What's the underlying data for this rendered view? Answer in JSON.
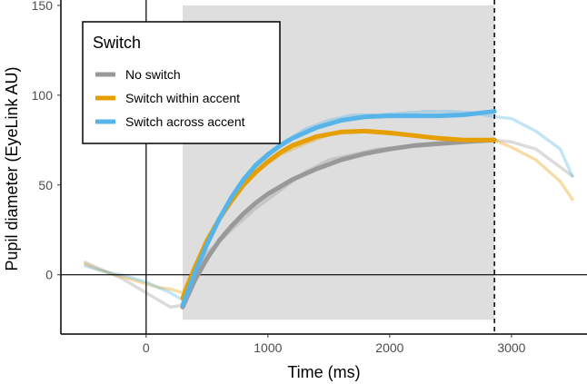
{
  "chart_data": {
    "type": "line",
    "xlabel": "Time (ms)",
    "ylabel": "Pupil diameter (EyeLink AU)",
    "xlim": [
      -700,
      3620
    ],
    "ylim": [
      -33,
      153
    ],
    "x_ticks": [
      0,
      1000,
      2000,
      3000
    ],
    "y_ticks": [
      0,
      50,
      100,
      150
    ],
    "grid": false,
    "shaded_region": {
      "x": [
        300,
        2860
      ],
      "y": [
        -25,
        150
      ],
      "color": "#dedede"
    },
    "reference_lines": {
      "vertical_solid_x": 0,
      "horizontal_solid_y": 0,
      "vertical_dashed_x": 2860
    },
    "legend": {
      "title": "Switch",
      "placement": "top-left"
    },
    "series": [
      {
        "name": "No switch",
        "color": "#999999",
        "fit": {
          "x": [
            300,
            400,
            500,
            600,
            700,
            800,
            900,
            1000,
            1200,
            1400,
            1600,
            1800,
            2000,
            2200,
            2400,
            2600,
            2860
          ],
          "y": [
            -18,
            -3,
            9,
            19,
            27,
            34,
            40,
            45,
            53,
            59,
            64,
            67.5,
            70,
            72,
            73,
            74,
            75
          ]
        },
        "raw": {
          "x": [
            -500,
            -400,
            -300,
            -200,
            -100,
            0,
            100,
            200,
            300,
            400,
            500,
            700,
            900,
            1100,
            1300,
            1500,
            1700,
            1900,
            2100,
            2300,
            2500,
            2700,
            2860,
            3000,
            3200,
            3400,
            3500
          ],
          "y": [
            7,
            4,
            1,
            -2,
            -6,
            -10,
            -14,
            -18,
            -17,
            0,
            12,
            25,
            37,
            47,
            57,
            64,
            67,
            70,
            71,
            72,
            73,
            74,
            75,
            74,
            70,
            60,
            55
          ]
        }
      },
      {
        "name": "Switch within accent",
        "color": "#E69F00",
        "fit": {
          "x": [
            300,
            400,
            500,
            600,
            700,
            800,
            900,
            1000,
            1100,
            1200,
            1400,
            1600,
            1800,
            2000,
            2200,
            2400,
            2600,
            2860
          ],
          "y": [
            -13,
            4,
            19,
            31,
            41,
            50,
            57,
            63,
            68,
            72,
            77,
            79.5,
            80,
            79,
            77.5,
            76,
            75,
            75
          ]
        },
        "raw": {
          "x": [
            -500,
            -400,
            -300,
            -200,
            -100,
            0,
            100,
            200,
            300,
            400,
            500,
            700,
            900,
            1100,
            1300,
            1500,
            1700,
            1900,
            2100,
            2300,
            2500,
            2700,
            2860,
            3000,
            3200,
            3400,
            3500
          ],
          "y": [
            6,
            3,
            1,
            -1,
            -3,
            -5,
            -7,
            -8,
            -10,
            5,
            20,
            42,
            57,
            67,
            73,
            78,
            80,
            79,
            78,
            77,
            76,
            75,
            75,
            71,
            64,
            52,
            42
          ]
        }
      },
      {
        "name": "Switch across accent",
        "color": "#56B4E9",
        "fit": {
          "x": [
            300,
            400,
            500,
            600,
            700,
            800,
            900,
            1000,
            1100,
            1200,
            1400,
            1600,
            1800,
            2000,
            2200,
            2400,
            2600,
            2860
          ],
          "y": [
            -17,
            1,
            17,
            31,
            43,
            53,
            61,
            67,
            72,
            76,
            82,
            86,
            88,
            88.5,
            88.5,
            88.5,
            89,
            91
          ]
        },
        "raw": {
          "x": [
            -500,
            -400,
            -300,
            -200,
            -100,
            0,
            100,
            200,
            300,
            400,
            500,
            700,
            900,
            1100,
            1300,
            1500,
            1700,
            1900,
            2100,
            2300,
            2500,
            2700,
            2860,
            3000,
            3200,
            3400,
            3500
          ],
          "y": [
            5,
            3,
            1,
            0,
            -2,
            -4,
            -7,
            -10,
            -14,
            2,
            18,
            42,
            60,
            72,
            81,
            86,
            89,
            89,
            90,
            91,
            91,
            90,
            88,
            87,
            80,
            70,
            55
          ]
        }
      }
    ]
  }
}
